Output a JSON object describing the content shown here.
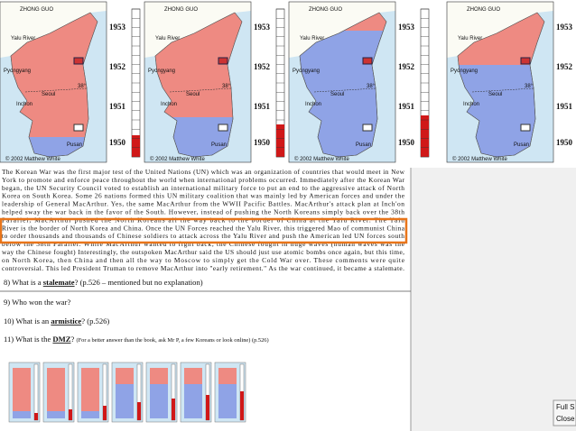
{
  "panels": [
    {
      "title": "ZHONG GUO",
      "river": "Yalu River",
      "city_north": "Pyongyang",
      "parallel": "38°",
      "capital": "Seoul",
      "port": "Inchon",
      "south_city": "Pusan",
      "credit": "© 2002 Matthew White",
      "years": [
        "1953",
        "1952",
        "1951",
        "1950"
      ]
    },
    {
      "title": "ZHONG GUO",
      "river": "Yalu River",
      "city_north": "Pyongyang",
      "parallel": "38°",
      "capital": "Seoul",
      "port": "Inchon",
      "south_city": "Pusan",
      "credit": "© 2002 Matthew White",
      "years": [
        "1953",
        "1952",
        "1951",
        "1950"
      ]
    },
    {
      "title": "ZHONG GUO",
      "river": "Yalu River",
      "city_north": "Pyongyang",
      "parallel": "38°",
      "capital": "Seoul",
      "port": "Inchon",
      "south_city": "Pusan",
      "credit": "© 2002 Matthew White",
      "years": [
        "1953",
        "1952",
        "1951",
        "1950"
      ]
    },
    {
      "title": "ZHONG GUO",
      "river": "Yalu River",
      "city_north": "Pyongyang",
      "parallel": "38°",
      "capital": "Seoul",
      "port": "Inchon",
      "south_city": "Pusan",
      "credit": "© 2002 Matthew White",
      "years": [
        "1953",
        "1952",
        "1951",
        "1950"
      ]
    }
  ],
  "paragraph": [
    "The Korean War was the first major test of the United Nations (UN) which was an organization of countries that would meet in New",
    "York to promote and enforce peace throughout the world when international problems occurred. Immediately after the Korean War",
    "began, the UN Security Council voted to establish an international military force to put an end to the aggressive attack of North",
    "Korea on South Korea. Some 26 nations formed this UN military coalition that was mainly led by American forces and under the",
    "leadership of General MacArthur. Yes, the same MacArthur from the WWII Pacific Battles. MacArthur's attack plan at Inch'on",
    "helped sway the war back in the favor of the South. However, instead of pushing the North Koreans simply back over the 38th",
    "Parallel, MacArthur pushed the North Koreans all the way back to the border of China at the Yalu River. The Yalu",
    "River is the border of North Korea and China. Once the UN Forces reached the Yalu River, this triggered Mao of communist China",
    "to order thousands and thousands of Chinese soldiers to attack across the Yalu River and push the American led UN forces south",
    "below the 38th Parallel. While MacArthur wanted to fight back, the Chinese fought in huge waves (human waves was the",
    "way the Chinese fought) Interestingly, the outspoken MacArthur said the US should just use atomic bombs once again, but this time,",
    "on North Korea, then China and then all the way to Moscow to simply get the Cold War over. These comments were quite",
    "controversial. This led President Truman to remove MacArthur into \"early retirement.\" As the war continued, it became a stalemate."
  ],
  "questions": [
    {
      "before": "8) What is a ",
      "term": "stalemate",
      "after": "? (p.526 – mentioned but no explanation)"
    },
    {
      "before": "9) Who won the war?"
    },
    {
      "before": "10) What is an ",
      "term": "armistice",
      "after": "? (p.526)"
    },
    {
      "before": "11) What is the ",
      "term": "DMZ",
      "after": "? ",
      "note": "(For a better answer than the book, ask Mr P, a few Koreans or look online) (p.526)"
    }
  ],
  "viewer_buttons": [
    "Full S",
    "Close"
  ]
}
